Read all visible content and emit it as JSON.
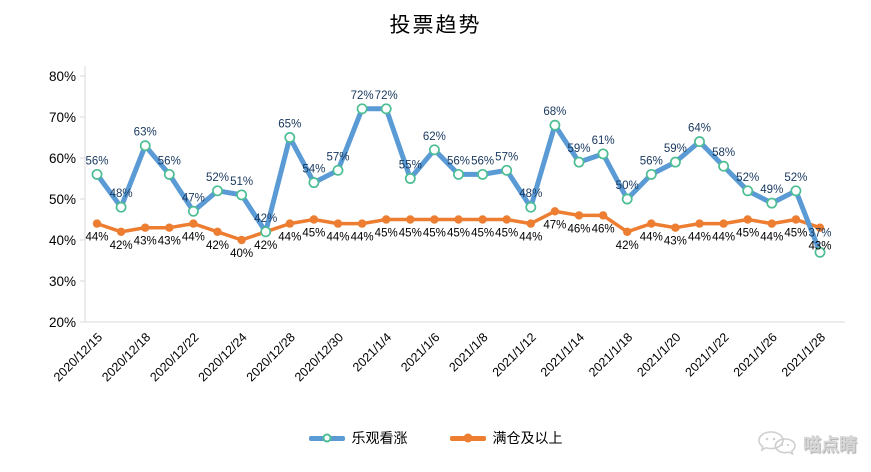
{
  "chart_data": {
    "type": "line",
    "title": "投票趋势",
    "x_labels": [
      "2020/12/15",
      "",
      "2020/12/18",
      "",
      "2020/12/22",
      "",
      "2020/12/24",
      "",
      "2020/12/28",
      "",
      "2020/12/30",
      "",
      "2021/1/4",
      "",
      "2021/1/6",
      "",
      "2021/1/8",
      "",
      "2021/1/12",
      "",
      "2021/1/14",
      "",
      "2021/1/18",
      "",
      "2021/1/20",
      "",
      "2021/1/22",
      "",
      "2021/1/26",
      "",
      "2021/1/28"
    ],
    "series": [
      {
        "name": "乐观看涨",
        "color": "#5B9BD5",
        "marker": "open-circle",
        "marker_stroke": "#4DBE93",
        "label_color": "#17375E",
        "values": [
          56,
          48,
          63,
          56,
          47,
          52,
          51,
          42,
          65,
          54,
          57,
          72,
          72,
          55,
          62,
          56,
          56,
          57,
          48,
          68,
          59,
          61,
          50,
          56,
          59,
          64,
          58,
          52,
          49,
          52,
          37
        ]
      },
      {
        "name": "满仓及以上",
        "color": "#ED7D31",
        "marker": "solid-circle",
        "label_color": "#000000",
        "values": [
          44,
          42,
          43,
          43,
          44,
          42,
          40,
          42,
          44,
          45,
          44,
          44,
          45,
          45,
          45,
          45,
          45,
          45,
          44,
          47,
          46,
          46,
          42,
          44,
          43,
          44,
          44,
          45,
          44,
          45,
          43
        ]
      }
    ],
    "ylim": [
      20,
      80
    ],
    "ytick_labels": [
      "20%",
      "30%",
      "40%",
      "50%",
      "60%",
      "70%",
      "80%"
    ],
    "grid": false,
    "legend_position": "bottom",
    "axis_color": "#D9D9D9",
    "tick_label_color": "#000000"
  },
  "watermark": {
    "text": "喵点睛"
  }
}
